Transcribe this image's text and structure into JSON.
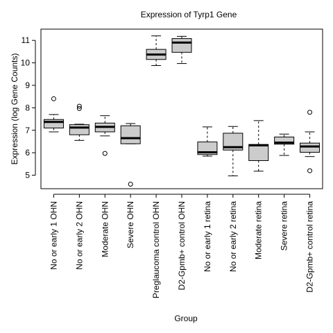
{
  "chart_data": {
    "type": "box",
    "title": "Expression of  Tyrp1 Gene",
    "xlabel": "Group",
    "ylabel": "Expression (log Gene Counts)",
    "ylim": [
      4.4,
      11.5
    ],
    "yticks": [
      5,
      6,
      7,
      8,
      9,
      10,
      11
    ],
    "grid": false,
    "colors": {
      "box_fill": "#cccccc",
      "stroke": "#000000"
    },
    "categories": [
      "No or early 1 OHN",
      "No or early 2 OHN",
      "Moderate OHN",
      "Severe OHN",
      "Preglaucoma control OHN",
      "D2-Gpmb+ control OHN",
      "No or early 1 retina",
      "No or early 2 retina",
      "Moderate retina",
      "Severe retina",
      "D2-Gpmb+ control retina"
    ],
    "boxes": [
      {
        "min": 6.93,
        "q1": 7.1,
        "median": 7.37,
        "q3": 7.48,
        "max": 7.7,
        "outliers": [
          8.4
        ]
      },
      {
        "min": 6.55,
        "q1": 6.8,
        "median": 7.12,
        "q3": 7.25,
        "max": 7.27,
        "outliers": [
          8.07,
          7.97
        ]
      },
      {
        "min": 6.75,
        "q1": 6.93,
        "median": 7.15,
        "q3": 7.32,
        "max": 7.65,
        "outliers": [
          5.97
        ]
      },
      {
        "min": 6.4,
        "q1": 6.4,
        "median": 6.65,
        "q3": 7.2,
        "max": 7.3,
        "outliers": [
          4.6
        ]
      },
      {
        "min": 9.88,
        "q1": 10.15,
        "median": 10.37,
        "q3": 10.6,
        "max": 11.2,
        "outliers": []
      },
      {
        "min": 9.97,
        "q1": 10.47,
        "median": 10.9,
        "q3": 11.08,
        "max": 11.18,
        "outliers": []
      },
      {
        "min": 5.85,
        "q1": 5.92,
        "median": 6.02,
        "q3": 6.48,
        "max": 7.15,
        "outliers": []
      },
      {
        "min": 4.97,
        "q1": 6.12,
        "median": 6.25,
        "q3": 6.87,
        "max": 7.17,
        "outliers": []
      },
      {
        "min": 5.18,
        "q1": 5.65,
        "median": 6.33,
        "q3": 6.37,
        "max": 7.43,
        "outliers": []
      },
      {
        "min": 5.88,
        "q1": 6.38,
        "median": 6.45,
        "q3": 6.7,
        "max": 6.83,
        "outliers": []
      },
      {
        "min": 5.83,
        "q1": 6.02,
        "median": 6.28,
        "q3": 6.43,
        "max": 6.93,
        "outliers": [
          7.8,
          5.2
        ]
      }
    ]
  }
}
